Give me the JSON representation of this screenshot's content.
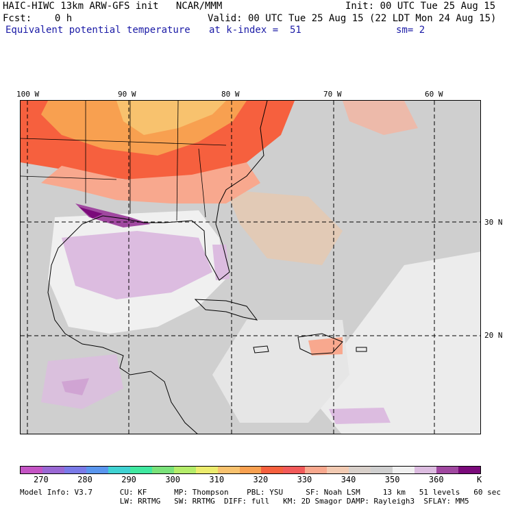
{
  "header": {
    "line1_left": "HAIC-HIWC 13km ARW-GFS init   NCAR/MMM",
    "line1_right": "Init: 00 UTC Tue 25 Aug 15",
    "line2_left": "Fcst:    0 h",
    "line2_right": "Valid: 00 UTC Tue 25 Aug 15 (22 LDT Mon 24 Aug 15)",
    "line3_field": "Equivalent potential temperature",
    "line3_level": "at k-index =  51",
    "line3_sm": "sm= 2"
  },
  "map": {
    "lon_labels": [
      "100 W",
      "90 W",
      "80 W",
      "70 W",
      "60 W"
    ],
    "lat_labels": [
      "30 N",
      "20 N"
    ]
  },
  "colorbar": {
    "colors": [
      "#c454c4",
      "#9a68d4",
      "#7a7ae8",
      "#5a96ee",
      "#40d2d2",
      "#40e8a0",
      "#7ae27a",
      "#b4ec6a",
      "#ecec6e",
      "#f8c26e",
      "#f8a050",
      "#f6603e",
      "#f25a5a",
      "#f8a88e",
      "#f2cab2",
      "#d8d0ca",
      "#cfcfcf",
      "#f0f0f0",
      "#dcbce0",
      "#a048a0",
      "#7a0a7a"
    ],
    "labels": [
      "270",
      "280",
      "290",
      "300",
      "310",
      "320",
      "330",
      "340",
      "350",
      "360"
    ],
    "unit": "K"
  },
  "footer": {
    "line1": "Model Info: V3.7      CU: KF      MP: Thompson    PBL: YSU     SF: Noah LSM     13 km   51 levels   60 sec",
    "line2": "                      LW: RRTMG   SW: RRTMG  DIFF: full   KM: 2D Smagor DAMP: Rayleigh3  SFLAY: MM5"
  }
}
